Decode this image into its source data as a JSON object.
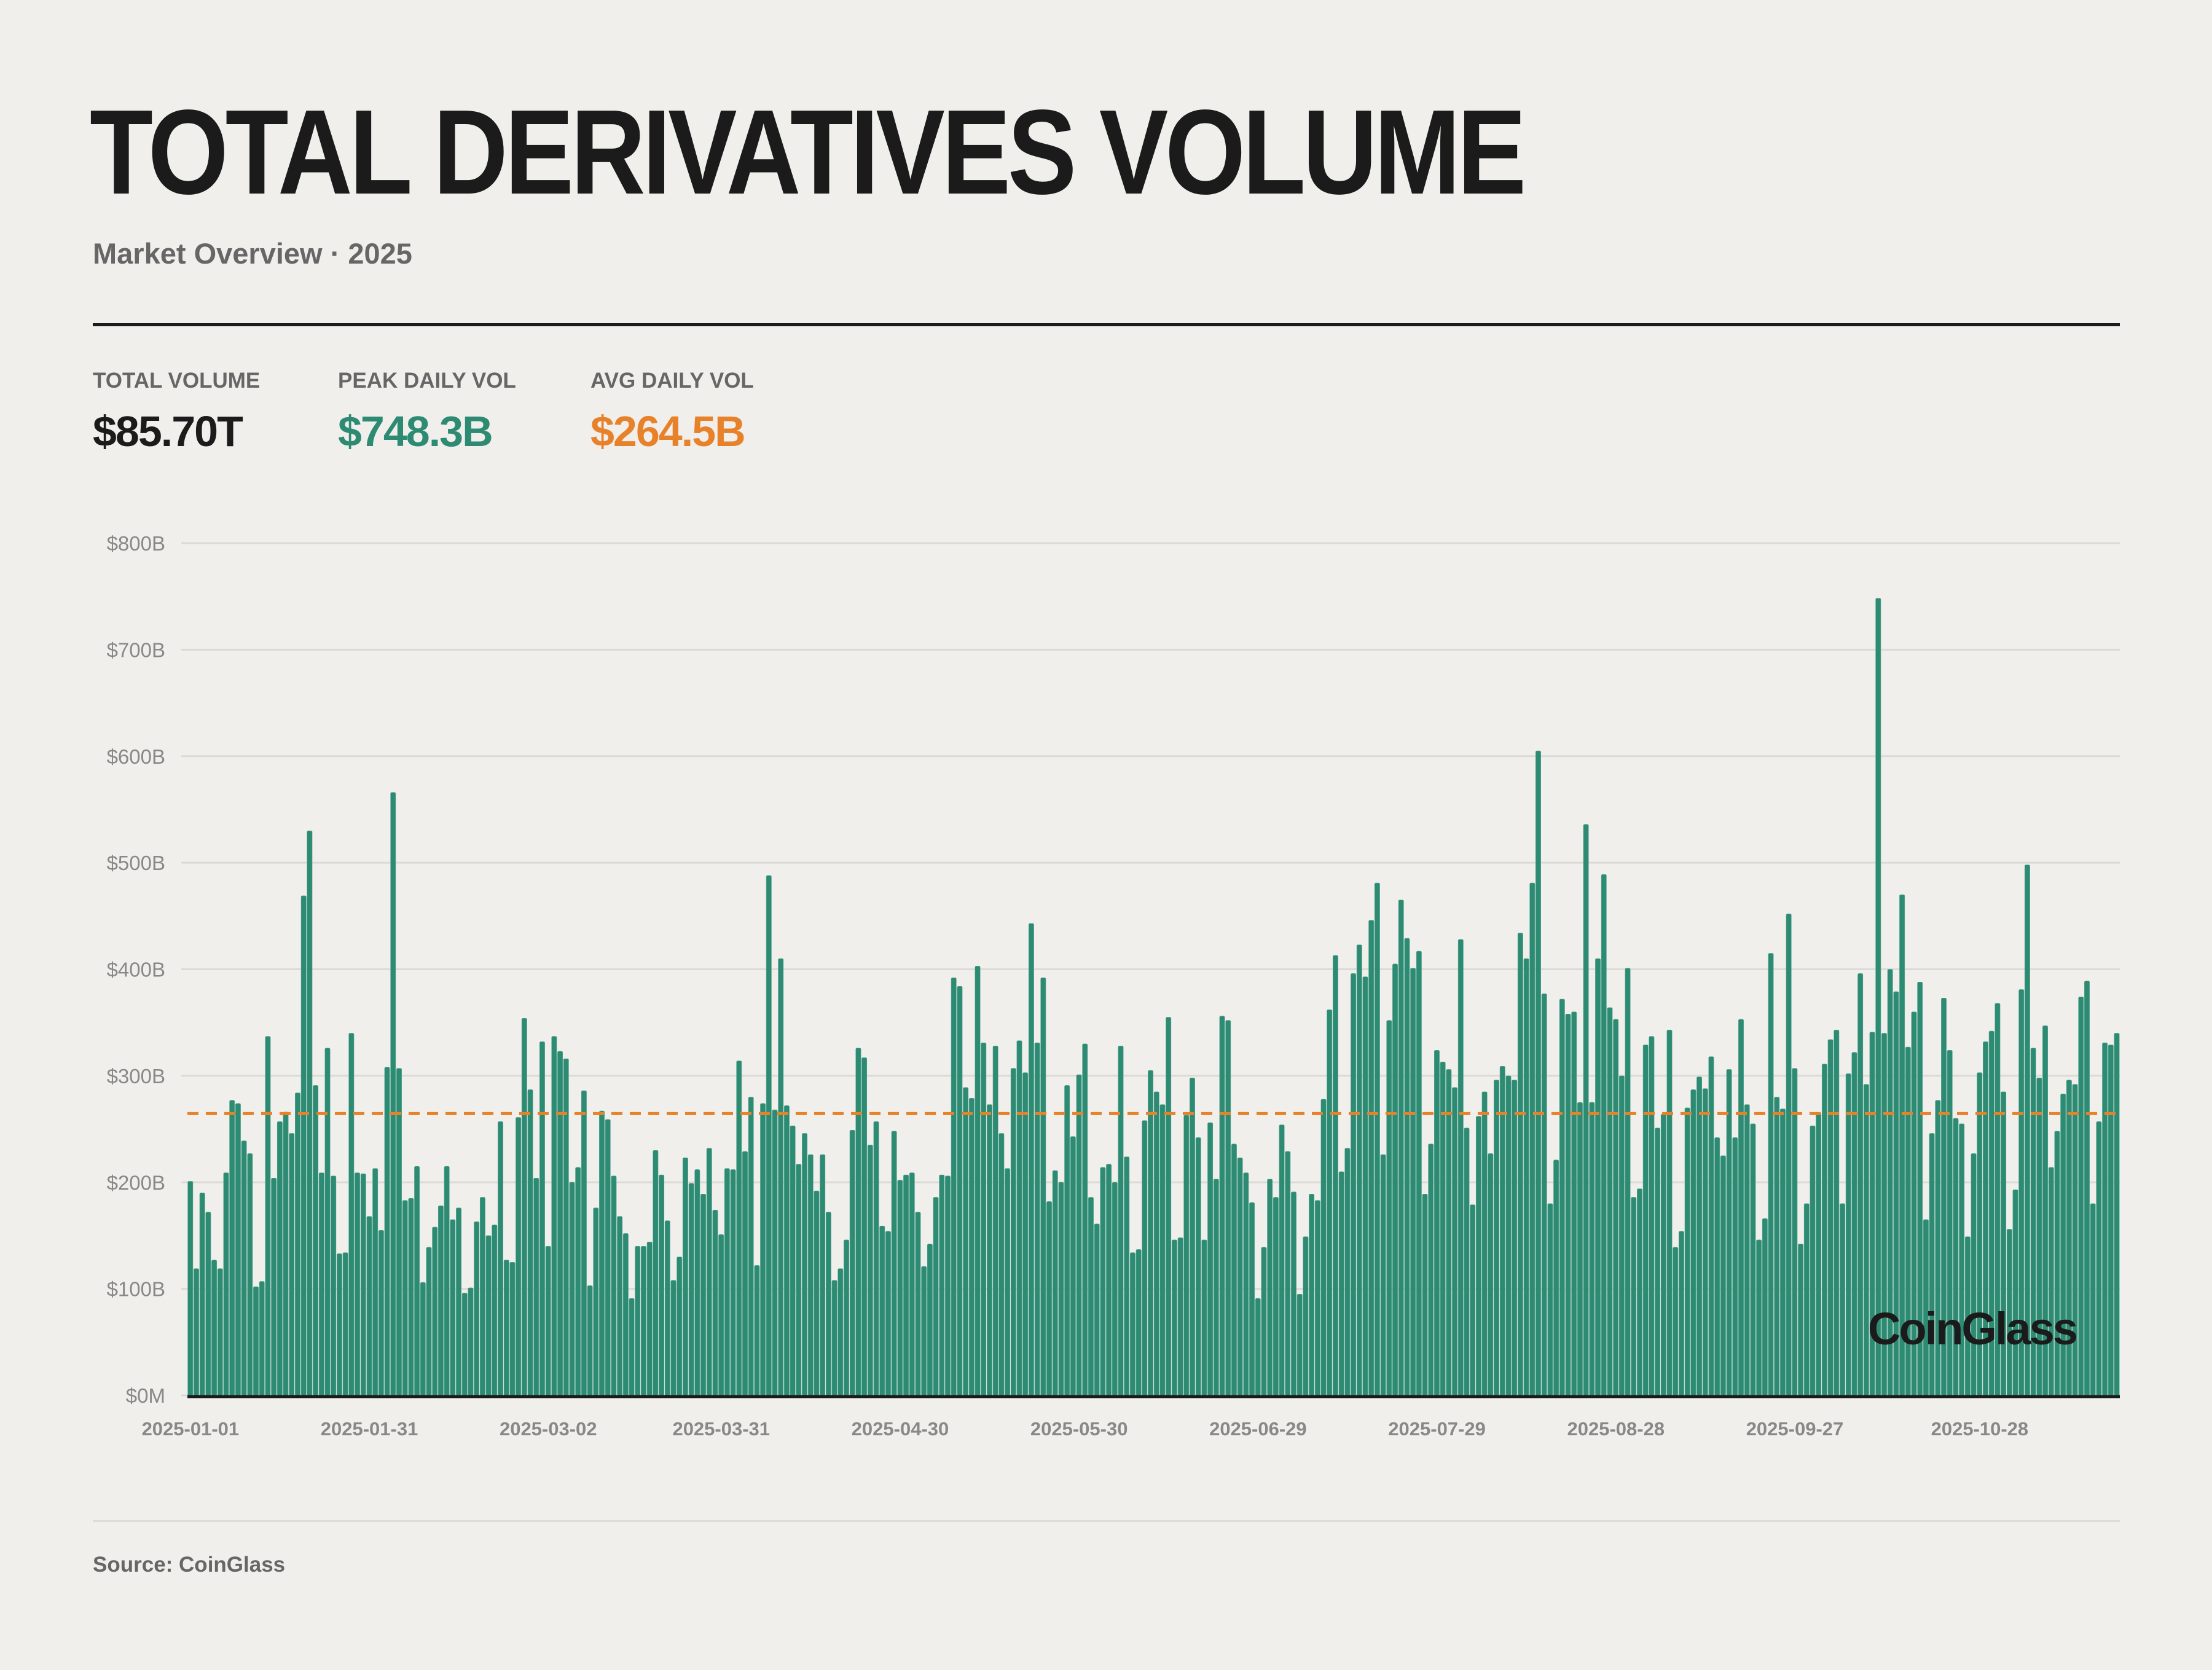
{
  "header": {
    "title": "TOTAL DERIVATIVES VOLUME",
    "subtitle": "Market Overview · 2025"
  },
  "stats": [
    {
      "label": "TOTAL VOLUME",
      "value": "$85.70T",
      "color": "#1b1b1b"
    },
    {
      "label": "PEAK DAILY VOL",
      "value": "$748.3B",
      "color": "#2e8b73"
    },
    {
      "label": "AVG DAILY VOL",
      "value": "$264.5B",
      "color": "#e8822a"
    }
  ],
  "chart_data": {
    "type": "bar",
    "title": "",
    "xlabel": "",
    "ylabel": "",
    "ylim": [
      0,
      800
    ],
    "y_unit": "billion USD",
    "grid": true,
    "bar_color": "#2e8b73",
    "average_line": {
      "value": 264.5,
      "color": "#e8822a",
      "style": "dashed"
    },
    "y_ticks": [
      {
        "value": 0,
        "label": "$0M"
      },
      {
        "value": 100,
        "label": "$100B"
      },
      {
        "value": 200,
        "label": "$200B"
      },
      {
        "value": 300,
        "label": "$300B"
      },
      {
        "value": 400,
        "label": "$400B"
      },
      {
        "value": 500,
        "label": "$500B"
      },
      {
        "value": 600,
        "label": "$600B"
      },
      {
        "value": 700,
        "label": "$700B"
      },
      {
        "value": 800,
        "label": "$800B"
      }
    ],
    "x_ticks": [
      "2025-01-01",
      "2025-01-31",
      "2025-03-02",
      "2025-03-31",
      "2025-04-30",
      "2025-05-30",
      "2025-06-29",
      "2025-07-29",
      "2025-08-28",
      "2025-09-27",
      "2025-10-28"
    ],
    "values": [
      201,
      119,
      190,
      172,
      127,
      119,
      209,
      277,
      274,
      239,
      227,
      102,
      107,
      337,
      204,
      257,
      266,
      246,
      284,
      469,
      530,
      291,
      209,
      326,
      206,
      133,
      134,
      340,
      209,
      208,
      168,
      213,
      155,
      308,
      566,
      307,
      183,
      185,
      215,
      106,
      139,
      158,
      178,
      215,
      165,
      176,
      96,
      101,
      163,
      186,
      150,
      160,
      257,
      127,
      125,
      261,
      354,
      287,
      204,
      332,
      140,
      337,
      323,
      316,
      200,
      214,
      286,
      103,
      176,
      267,
      259,
      206,
      168,
      152,
      91,
      140,
      140,
      144,
      230,
      207,
      164,
      108,
      130,
      223,
      199,
      212,
      189,
      232,
      174,
      151,
      213,
      212,
      314,
      229,
      280,
      122,
      274,
      488,
      268,
      410,
      272,
      253,
      217,
      246,
      226,
      192,
      226,
      172,
      108,
      119,
      146,
      249,
      326,
      317,
      235,
      257,
      159,
      154,
      248,
      202,
      207,
      209,
      172,
      121,
      142,
      186,
      207,
      206,
      392,
      384,
      289,
      279,
      403,
      331,
      273,
      328,
      246,
      213,
      307,
      333,
      303,
      443,
      331,
      392,
      182,
      211,
      200,
      291,
      243,
      301,
      330,
      186,
      161,
      214,
      217,
      200,
      328,
      224,
      134,
      137,
      258,
      305,
      285,
      273,
      355,
      146,
      148,
      263,
      298,
      242,
      146,
      256,
      203,
      356,
      352,
      236,
      223,
      209,
      181,
      91,
      139,
      203,
      186,
      254,
      229,
      191,
      95,
      149,
      189,
      183,
      278,
      362,
      413,
      210,
      232,
      396,
      423,
      393,
      446,
      481,
      226,
      352,
      405,
      465,
      429,
      401,
      417,
      189,
      236,
      324,
      313,
      306,
      289,
      428,
      251,
      179,
      262,
      285,
      227,
      296,
      309,
      300,
      296,
      434,
      410,
      481,
      605,
      377,
      180,
      221,
      372,
      358,
      360,
      275,
      536,
      275,
      410,
      489,
      364,
      353,
      300,
      401,
      186,
      194,
      329,
      337,
      251,
      264,
      343,
      139,
      154,
      270,
      287,
      299,
      288,
      318,
      242,
      225,
      306,
      242,
      353,
      273,
      255,
      146,
      166,
      415,
      280,
      269,
      452,
      307,
      142,
      180,
      253,
      265,
      311,
      334,
      343,
      180,
      302,
      322,
      396,
      292,
      341,
      748.3,
      340,
      400,
      379,
      470,
      327,
      360,
      388,
      165,
      246,
      277,
      373,
      324,
      260,
      255,
      149,
      227,
      303,
      332,
      342,
      368,
      285,
      156,
      193,
      381,
      498,
      326,
      298,
      347,
      214,
      248,
      283,
      296,
      292,
      374,
      389,
      180,
      257,
      331,
      329,
      340
    ]
  },
  "watermark": "CoinGlass",
  "footer": {
    "source": "Source: CoinGlass"
  }
}
